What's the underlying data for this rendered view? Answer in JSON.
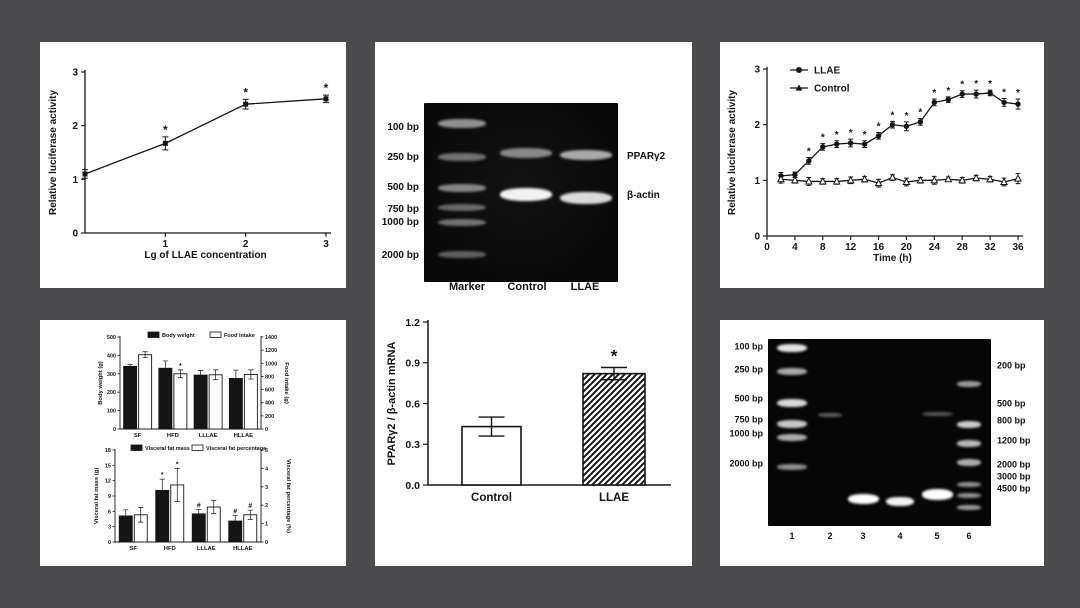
{
  "scene": {
    "background_color": "#4b4b4d",
    "panel_background": "#ffffff",
    "ink_color": "#151515"
  },
  "chart_data": [
    {
      "id": "dose_response",
      "type": "line",
      "title": "",
      "xlabel": "Lg of LLAE concentration",
      "ylabel": "Relative luciferase activity",
      "x": [
        0,
        1,
        2,
        3
      ],
      "xlim": [
        0,
        3
      ],
      "ylim": [
        0,
        3
      ],
      "xticks": [
        1,
        2,
        3
      ],
      "yticks": [
        0,
        1,
        2,
        3
      ],
      "grid": false,
      "legend": null,
      "series": [
        {
          "name": "LLAE",
          "marker": "square",
          "values": [
            1.1,
            1.67,
            2.4,
            2.5
          ],
          "errors": [
            0.08,
            0.12,
            0.09,
            0.07
          ],
          "stars": [
            false,
            true,
            true,
            true
          ]
        }
      ]
    },
    {
      "id": "time_course",
      "type": "line",
      "title": "",
      "xlabel": "Time (h)",
      "ylabel": "Relative luciferase activity",
      "x": [
        2,
        4,
        6,
        8,
        10,
        12,
        14,
        16,
        18,
        20,
        22,
        24,
        26,
        28,
        30,
        32,
        34,
        36
      ],
      "xlim": [
        0,
        36
      ],
      "ylim": [
        0,
        3
      ],
      "xticks": [
        0,
        4,
        8,
        12,
        16,
        20,
        24,
        28,
        32,
        36
      ],
      "yticks": [
        0,
        1,
        2,
        3
      ],
      "grid": false,
      "legend": {
        "position": "top-left",
        "entries": [
          "LLAE",
          "Control"
        ]
      },
      "series": [
        {
          "name": "LLAE",
          "marker": "circle",
          "values": [
            1.08,
            1.1,
            1.35,
            1.6,
            1.65,
            1.67,
            1.65,
            1.8,
            2.0,
            1.97,
            2.05,
            2.4,
            2.45,
            2.55,
            2.55,
            2.57,
            2.4,
            2.37
          ],
          "errors": [
            0.06,
            0.05,
            0.06,
            0.06,
            0.06,
            0.07,
            0.06,
            0.06,
            0.06,
            0.08,
            0.06,
            0.06,
            0.05,
            0.06,
            0.07,
            0.05,
            0.07,
            0.09
          ],
          "stars": [
            false,
            false,
            true,
            true,
            true,
            true,
            true,
            true,
            true,
            true,
            true,
            true,
            true,
            true,
            true,
            true,
            true,
            true
          ]
        },
        {
          "name": "Control",
          "marker": "triangle-open",
          "values": [
            1.02,
            1.0,
            0.98,
            0.98,
            0.98,
            1.0,
            1.02,
            0.95,
            1.05,
            0.97,
            1.0,
            1.0,
            1.02,
            1.0,
            1.04,
            1.02,
            0.97,
            1.03
          ],
          "errors": [
            0.07,
            0.05,
            0.07,
            0.05,
            0.05,
            0.06,
            0.05,
            0.07,
            0.05,
            0.07,
            0.05,
            0.07,
            0.04,
            0.05,
            0.05,
            0.05,
            0.07,
            0.09
          ],
          "stars": [
            false,
            false,
            false,
            false,
            false,
            false,
            false,
            false,
            false,
            false,
            false,
            false,
            false,
            false,
            false,
            false,
            false,
            false
          ]
        }
      ]
    },
    {
      "id": "mrna_ratio",
      "type": "bar",
      "title": "",
      "xlabel": "",
      "ylabel": "PPARγ2 / β-actin mRNA",
      "categories": [
        "Control",
        "LLAE"
      ],
      "values": [
        0.43,
        0.82
      ],
      "errors": [
        0.07,
        0.045
      ],
      "stars": [
        false,
        true
      ],
      "fills": [
        "white",
        "hatch"
      ],
      "ylim": [
        0,
        1.2
      ],
      "yticks": [
        0.0,
        0.3,
        0.6,
        0.9,
        1.2
      ],
      "grid": false
    },
    {
      "id": "body_weight_food_intake",
      "type": "grouped-bar-dual-axis",
      "title": "",
      "ylabel_left": "Body weight (g)",
      "ylabel_right": "Food intake (g)",
      "categories": [
        "SF",
        "HFD",
        "LLLAE",
        "HLLAE"
      ],
      "ylim_left": [
        0,
        500
      ],
      "yticks_left": [
        0,
        100,
        200,
        300,
        400,
        500
      ],
      "ylim_right": [
        0,
        1400
      ],
      "yticks_right": [
        0,
        200,
        400,
        600,
        800,
        1000,
        1200,
        1400
      ],
      "grid": false,
      "legend": {
        "position": "top",
        "entries": [
          "Body weight",
          "Food intake"
        ]
      },
      "series": [
        {
          "name": "Body weight",
          "axis": "left",
          "fill": "black",
          "values": [
            340,
            330,
            293,
            275
          ],
          "errors": [
            10,
            40,
            25,
            45
          ],
          "marks": [
            "",
            "",
            "",
            ""
          ]
        },
        {
          "name": "Food intake",
          "axis": "right",
          "fill": "white",
          "values": [
            1130,
            840,
            825,
            830
          ],
          "errors": [
            45,
            60,
            75,
            70
          ],
          "marks": [
            "",
            "*",
            "",
            ""
          ]
        }
      ]
    },
    {
      "id": "visceral_fat",
      "type": "grouped-bar-dual-axis",
      "title": "",
      "ylabel_left": "Visceral fat mass (g)",
      "ylabel_right": "Visceral fat percentage (%)",
      "categories": [
        "SF",
        "HFD",
        "LLLAE",
        "HLLAE"
      ],
      "ylim_left": [
        0,
        18
      ],
      "yticks_left": [
        0,
        3,
        6,
        9,
        12,
        15,
        18
      ],
      "ylim_right": [
        0,
        5
      ],
      "yticks_right": [
        0,
        1,
        2,
        3,
        4,
        5
      ],
      "grid": false,
      "legend": {
        "position": "top",
        "entries": [
          "Visceral fat mass",
          "Visceral fat percentage"
        ]
      },
      "series": [
        {
          "name": "Visceral fat mass",
          "axis": "left",
          "fill": "black",
          "values": [
            5.1,
            10.1,
            5.5,
            4.1
          ],
          "errors": [
            1.2,
            2.2,
            0.9,
            1.1
          ],
          "marks": [
            "",
            "*",
            "#",
            "#"
          ]
        },
        {
          "name": "Visceral fat percentage",
          "axis": "right",
          "fill": "white",
          "values": [
            1.48,
            3.1,
            1.9,
            1.48
          ],
          "errors": [
            0.4,
            0.9,
            0.35,
            0.25
          ],
          "marks": [
            "",
            "*",
            "",
            "#"
          ]
        }
      ]
    }
  ],
  "gels": [
    {
      "id": "rt_pcr_gel",
      "lane_labels": [
        "Marker",
        "Control",
        "LLAE"
      ],
      "left_markers": [
        "100 bp",
        "250 bp",
        "500 bp",
        "750 bp",
        "1000 bp",
        "2000 bp"
      ],
      "right_band_labels": [
        "PPARγ2",
        "β-actin"
      ]
    },
    {
      "id": "clone_gel",
      "lane_labels": [
        "1",
        "2",
        "3",
        "4",
        "5",
        "6"
      ],
      "left_markers": [
        "100 bp",
        "250 bp",
        "500 bp",
        "750 bp",
        "1000 bp",
        "2000 bp"
      ],
      "right_markers": [
        "200 bp",
        "500 bp",
        "800 bp",
        "1200 bp",
        "2000 bp",
        "3000 bp",
        "4500 bp"
      ]
    }
  ]
}
